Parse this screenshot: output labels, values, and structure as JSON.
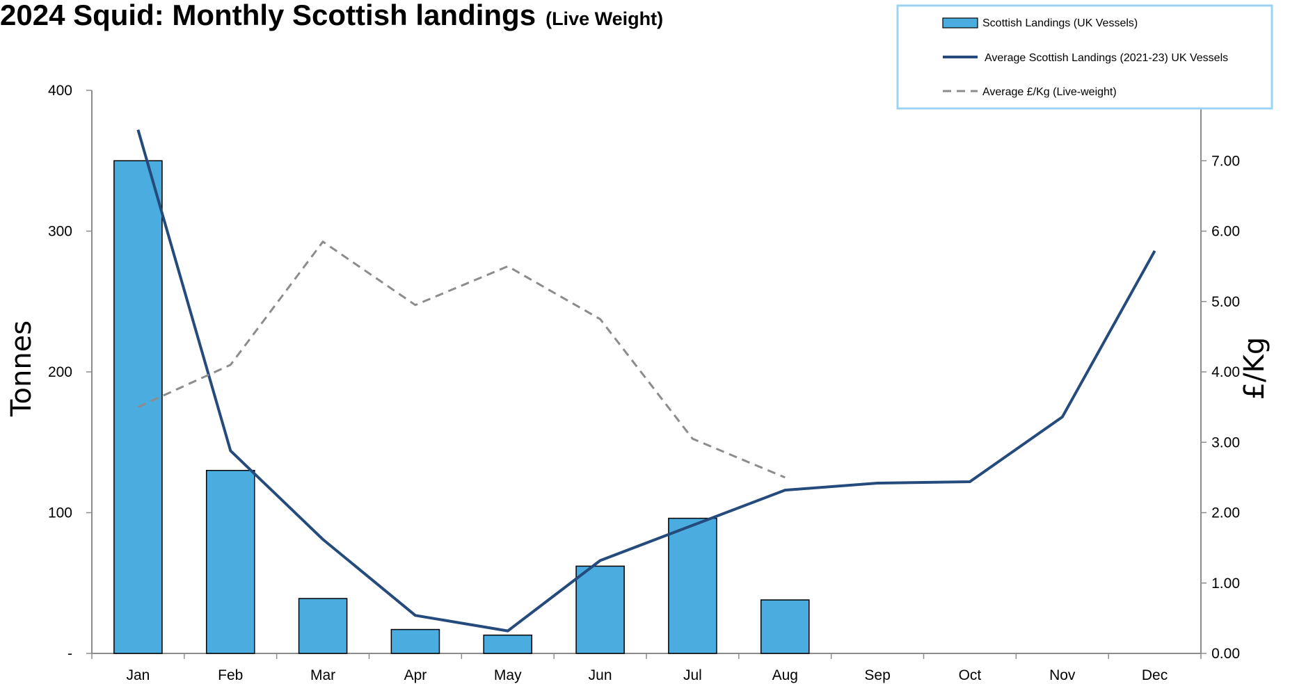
{
  "title": "2024 Squid: Monthly Scottish landings",
  "subtitle": "(Live Weight)",
  "chart_data": {
    "type": "bar",
    "title": "2024 Squid: Monthly Scottish landings (Live Weight)",
    "categories": [
      "Jan",
      "Feb",
      "Mar",
      "Apr",
      "May",
      "Jun",
      "Jul",
      "Aug",
      "Sep",
      "Oct",
      "Nov",
      "Dec"
    ],
    "ylabel": "Tonnes",
    "y2label": "£/Kg",
    "ylim": [
      0,
      400
    ],
    "y2lim": [
      0,
      8
    ],
    "y_ticks": [
      "-",
      "100",
      "200",
      "300",
      "400"
    ],
    "y2_ticks": [
      "0.00",
      "1.00",
      "2.00",
      "3.00",
      "4.00",
      "5.00",
      "6.00",
      "7.00"
    ],
    "grid": false,
    "legend_position": "top-right",
    "series": [
      {
        "name": "Scottish Landings (UK Vessels)",
        "type": "bar",
        "axis": "left",
        "color": "#4BACDF",
        "values": [
          350,
          130,
          39,
          17,
          13,
          62,
          96,
          38,
          null,
          null,
          null,
          null
        ]
      },
      {
        "name": "Average Scottish Landings  (2021-23) UK Vessels",
        "type": "line",
        "axis": "left",
        "color": "#254B7D",
        "values": [
          372,
          144,
          81,
          27,
          16,
          66,
          91,
          116,
          121,
          122,
          168,
          286
        ]
      },
      {
        "name": "Average £/Kg (Live-weight)",
        "type": "line",
        "style": "dashed",
        "axis": "right",
        "color": "#8C8C8C",
        "values": [
          3.5,
          4.1,
          5.85,
          4.95,
          5.5,
          4.75,
          3.05,
          2.5,
          null,
          null,
          null,
          null
        ]
      }
    ]
  }
}
